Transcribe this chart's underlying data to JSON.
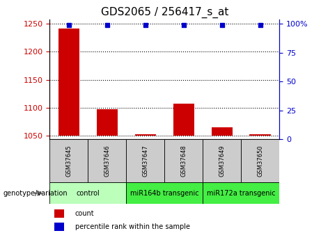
{
  "title": "GDS2065 / 256417_s_at",
  "samples": [
    "GSM37645",
    "GSM37646",
    "GSM37647",
    "GSM37648",
    "GSM37649",
    "GSM37650"
  ],
  "counts": [
    1241,
    1097,
    1053,
    1108,
    1065,
    1053
  ],
  "dot_percentile_values": [
    99,
    99,
    99,
    99,
    99,
    99
  ],
  "ylim_left": [
    1044,
    1258
  ],
  "ylim_right": [
    0,
    104
  ],
  "yticks_left": [
    1050,
    1100,
    1150,
    1200,
    1250
  ],
  "yticks_right": [
    0,
    25,
    50,
    75,
    100
  ],
  "bar_color": "#cc0000",
  "dot_color": "#0000cc",
  "group_spans": [
    {
      "start": 0,
      "end": 2,
      "label": "control",
      "color": "#bbffbb"
    },
    {
      "start": 2,
      "end": 4,
      "label": "miR164b transgenic",
      "color": "#44ee44"
    },
    {
      "start": 4,
      "end": 6,
      "label": "miR172a transgenic",
      "color": "#44ee44"
    }
  ],
  "sample_cell_color": "#cccccc",
  "group_label": "genotype/variation",
  "legend_count_label": "count",
  "legend_pct_label": "percentile rank within the sample",
  "bar_width": 0.55,
  "baseline": 1050,
  "tick_color_left": "#cc0000",
  "tick_color_right": "#0000cc",
  "title_fontsize": 11,
  "tick_fontsize": 8,
  "sample_fontsize": 6,
  "group_fontsize": 7,
  "legend_fontsize": 7
}
